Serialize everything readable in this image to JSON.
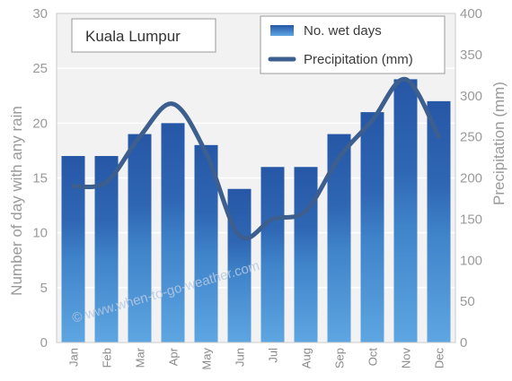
{
  "chart_data": {
    "type": "bar",
    "title": "Kuala Lumpur",
    "categories": [
      "Jan",
      "Feb",
      "Mar",
      "Apr",
      "May",
      "Jun",
      "Jul",
      "Aug",
      "Sep",
      "Oct",
      "Nov",
      "Dec"
    ],
    "series": [
      {
        "name": "No. wet days",
        "type": "bar",
        "axis": "left",
        "color": "#2f67b4",
        "values": [
          17,
          17,
          19,
          20,
          18,
          14,
          16,
          16,
          19,
          21,
          24,
          22
        ]
      },
      {
        "name": "Precipitation (mm)",
        "type": "line",
        "axis": "right",
        "color": "#3d5f8f",
        "values": [
          190,
          195,
          250,
          290,
          230,
          130,
          150,
          160,
          225,
          270,
          320,
          250
        ]
      }
    ],
    "ylabel_left": "Number of day with any rain",
    "ylabel_right": "Precipitation (mm)",
    "ylim_left": [
      0,
      30
    ],
    "ylim_right": [
      0,
      400
    ],
    "yticks_left": [
      "0",
      "5",
      "10",
      "15",
      "20",
      "25",
      "30"
    ],
    "yticks_right": [
      "0",
      "50",
      "100",
      "150",
      "200",
      "250",
      "300",
      "350",
      "400"
    ],
    "grid": true,
    "legend_position": "top-right",
    "watermark": "© www.when-to-go-weather.com"
  }
}
